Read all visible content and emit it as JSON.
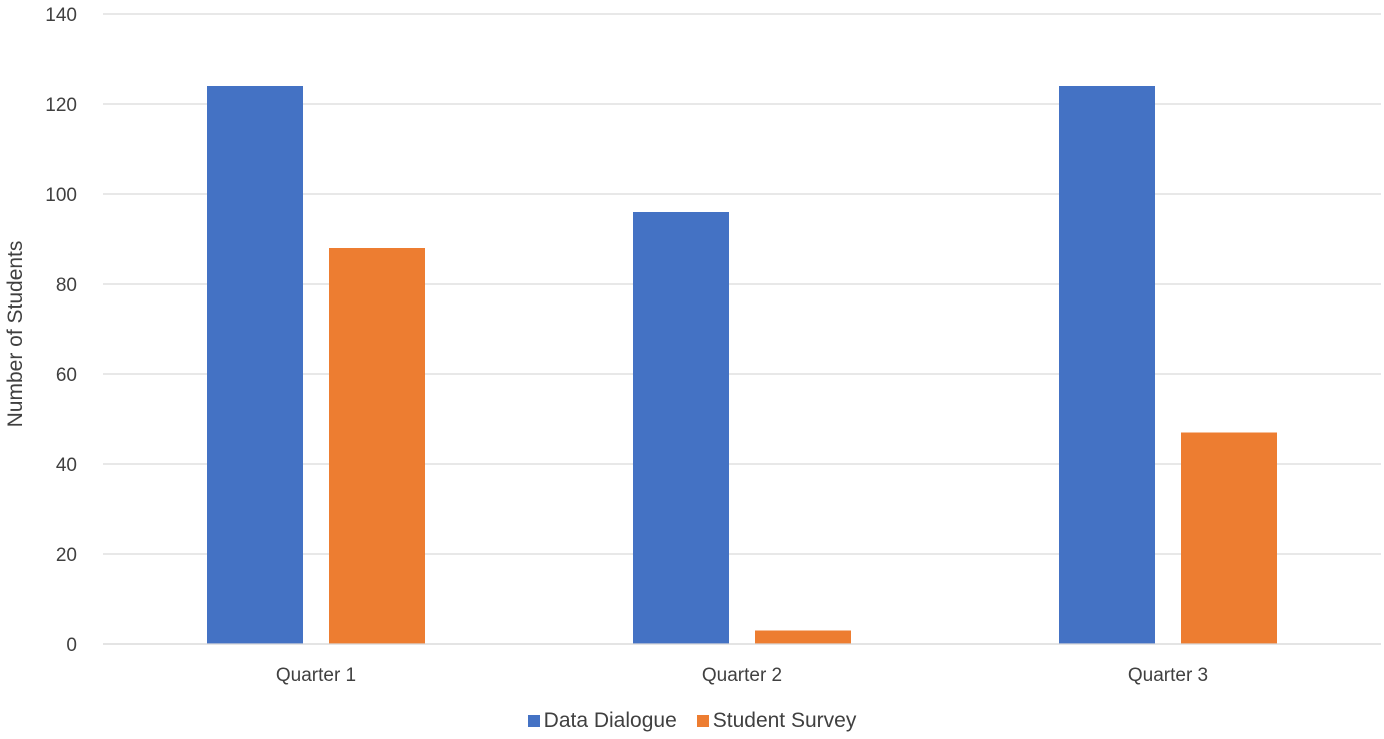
{
  "chart_data": {
    "type": "bar",
    "title": "",
    "xlabel": "",
    "ylabel": "Number of Students",
    "categories": [
      "Quarter 1",
      "Quarter 2",
      "Quarter 3"
    ],
    "ylim": [
      0,
      140
    ],
    "yticks": [
      0,
      20,
      40,
      60,
      80,
      100,
      120,
      140
    ],
    "grid": true,
    "legend_position": "bottom",
    "series": [
      {
        "name": "Data Dialogue",
        "color": "#4472C4",
        "values": [
          124,
          96,
          124
        ]
      },
      {
        "name": "Student Survey",
        "color": "#ED7D31",
        "values": [
          88,
          3,
          47
        ]
      }
    ]
  }
}
